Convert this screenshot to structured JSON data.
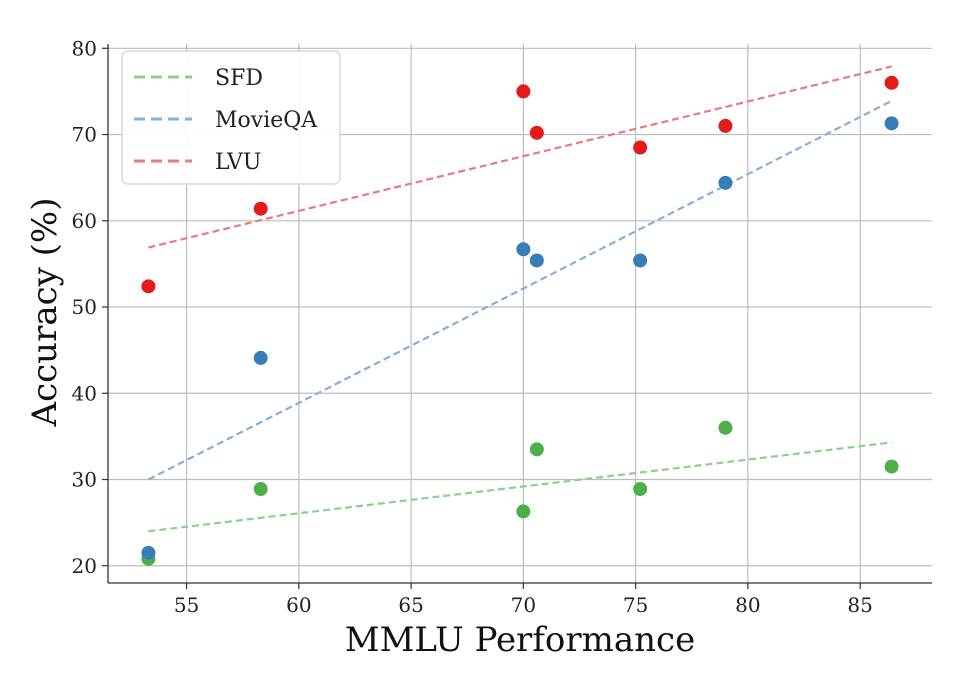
{
  "chart_data": {
    "type": "scatter",
    "title": "",
    "xlabel": "MMLU Performance",
    "ylabel": "Accuracy (%)",
    "xlim": [
      51.5,
      88.2
    ],
    "ylim": [
      18,
      80.5
    ],
    "xticks": [
      55,
      60,
      65,
      70,
      75,
      80,
      85
    ],
    "yticks": [
      20,
      30,
      40,
      50,
      60,
      70,
      80
    ],
    "grid": true,
    "legend_position": "top-left",
    "x": [
      53.3,
      58.3,
      70.0,
      70.6,
      75.2,
      79.0,
      86.4
    ],
    "series": [
      {
        "name": "SFD",
        "color": "#4daf4a",
        "trend_color": "#8fcf8c",
        "values": [
          20.8,
          28.9,
          26.3,
          33.5,
          28.9,
          36.0,
          31.5
        ],
        "trend": {
          "x": [
            53.3,
            86.4
          ],
          "y": [
            24.0,
            34.3
          ]
        }
      },
      {
        "name": "MovieQA",
        "color": "#377eb8",
        "trend_color": "#86b0d6",
        "values": [
          21.5,
          44.1,
          56.7,
          55.4,
          55.4,
          64.4,
          71.3
        ],
        "trend": {
          "x": [
            53.3,
            86.4
          ],
          "y": [
            30.0,
            73.9
          ]
        }
      },
      {
        "name": "LVU",
        "color": "#e41a1c",
        "trend_color": "#ec7a7c",
        "values": [
          52.4,
          61.4,
          75.0,
          70.2,
          68.5,
          71.0,
          76.0
        ],
        "trend": {
          "x": [
            53.3,
            86.4
          ],
          "y": [
            56.9,
            77.9
          ]
        }
      }
    ]
  }
}
